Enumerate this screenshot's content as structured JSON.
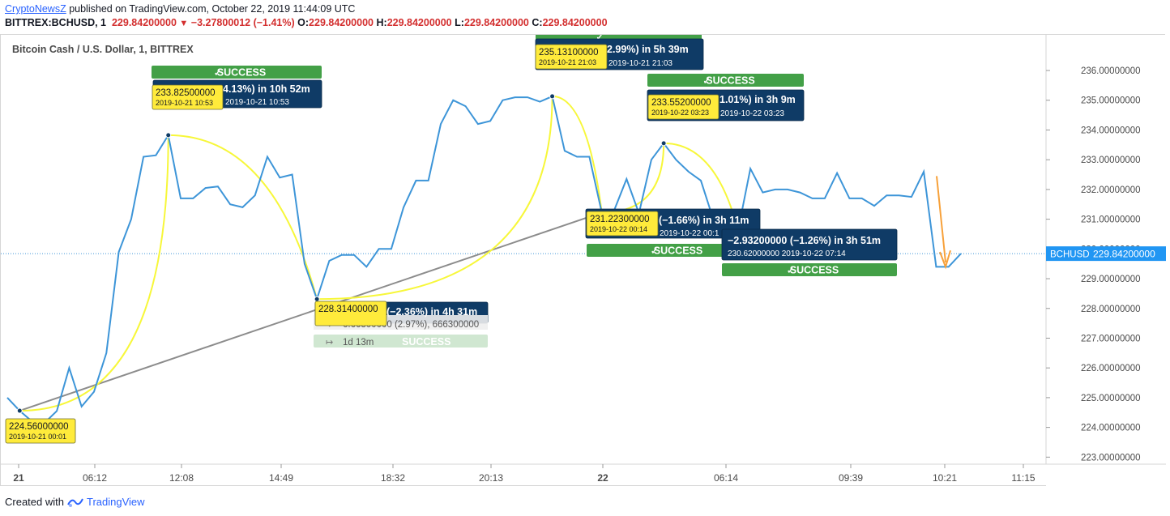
{
  "header": {
    "author": "CryptoNewsZ",
    "published_text": "published on TradingView.com, October 22, 2019 11:44:09 UTC",
    "symbol": "BITTREX:BCHUSD, 1",
    "last": "229.84200000",
    "change": "−3.27800012 (−1.41%)",
    "o_label": "O:",
    "o": "229.84200000",
    "h_label": "H:",
    "h": "229.84200000",
    "l_label": "L:",
    "l": "229.84200000",
    "c_label": "C:",
    "c": "229.84200000"
  },
  "footer": {
    "created_with": "Created with",
    "brand": "TradingView"
  },
  "colors": {
    "price_line": "#3d95d8",
    "yellow": "#f7f73a",
    "success": "#43a047",
    "box": "#0f3b66",
    "label_yellow": "#ffeb3b",
    "orange": "#f7a13a",
    "trend": "#8c8c8c",
    "price_tag": "#2196f3"
  },
  "chart_data": {
    "type": "line",
    "title": "Bitcoin Cash / U.S. Dollar, 1, BITTREX",
    "x_tick_labels": [
      "21",
      "06:12",
      "12:08",
      "14:49",
      "18:32",
      "20:13",
      "22",
      "06:14",
      "09:39",
      "10:21",
      "11:15"
    ],
    "y_tick_labels": [
      "223.00000000",
      "224.00000000",
      "225.00000000",
      "226.00000000",
      "227.00000000",
      "228.00000000",
      "229.00000000",
      "230.00000000",
      "231.00000000",
      "232.00000000",
      "233.00000000",
      "234.00000000",
      "235.00000000",
      "236.00000000"
    ],
    "ylim": [
      222.9,
      236.6
    ],
    "last_price_tag": {
      "symbol": "BCHUSD",
      "value": "229.84200000"
    },
    "series": [
      {
        "values": [
          225.0,
          224.56,
          224.2,
          224.15,
          224.55,
          226.0,
          224.7,
          225.2,
          226.5,
          229.9,
          231.0,
          233.1,
          233.15,
          233.825,
          231.7,
          231.7,
          232.05,
          232.1,
          231.5,
          231.4,
          231.8,
          233.1,
          232.4,
          232.5,
          229.5,
          228.314,
          229.6,
          229.8,
          229.8,
          229.4,
          230.0,
          230.0,
          231.4,
          232.3,
          232.3,
          234.2,
          235.0,
          234.8,
          234.2,
          234.3,
          235.0,
          235.1,
          235.1,
          234.95,
          235.131,
          233.3,
          233.1,
          233.1,
          231.223,
          231.3,
          232.35,
          231.2,
          233.0,
          233.552,
          233.0,
          232.6,
          232.3,
          231.0,
          230.9,
          230.62,
          232.7,
          231.9,
          232.0,
          232.0,
          231.9,
          231.7,
          231.7,
          232.55,
          231.7,
          231.7,
          231.45,
          231.8,
          231.8,
          231.75,
          232.6,
          229.4,
          229.4,
          229.842
        ]
      }
    ],
    "annotations": [
      {
        "name": "rally-1",
        "start_price": "224.56000000",
        "start_date": "2019-10-21 00:01",
        "end_price": "233.82500000",
        "end_date": "2019-10-21 10:53",
        "stats": "4.13%) in 10h 52m",
        "stats_date": "2019-10-21  10:53",
        "status": "SUCCESS"
      },
      {
        "name": "drop-1",
        "end_price": "228.31400000",
        "stats": "(−2.36%) in 4h 31m",
        "status": "SUCCESS"
      },
      {
        "name": "rally-2",
        "end_price": "235.13100000",
        "end_date": "2019-10-21 21:03",
        "stats": "2.99%) in 5h 39m",
        "stats_date": "2019-10-21  21:03"
      },
      {
        "name": "drop-2",
        "end_price": "231.22300000",
        "end_date": "2019-10-22 00:14",
        "stats": "(−1.66%) in 3h 11m",
        "stats_date": "2019-10-22  00:1",
        "status": "SUCCESS"
      },
      {
        "name": "rally-3",
        "end_price": "233.55200000",
        "end_date": "2019-10-22 03:23",
        "stats": "1.01%) in 3h 9m",
        "stats_date": "2019-10-22  03:23",
        "status": "SUCCESS"
      },
      {
        "name": "drop-3",
        "stats": "−2.93200000 (−1.26%) in 3h 51m",
        "stats_sub": "230.62000000  2019-10-22  07:14",
        "status": "SUCCESS"
      }
    ],
    "trendline_info": {
      "range": "6.66300000 (2.97%), 666300000",
      "bars": "1d 13m"
    }
  }
}
